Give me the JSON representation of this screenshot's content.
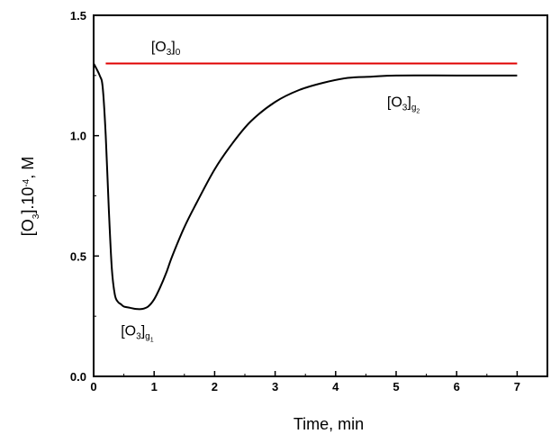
{
  "chart_data": {
    "type": "line",
    "title": "",
    "xlabel": "Time, min",
    "ylabel": {
      "pre": "[O",
      "sub": "3",
      "mid": "].10",
      "sup": "-4",
      "post": ", M"
    },
    "xlim": [
      0,
      7.5
    ],
    "ylim": [
      0,
      1.5
    ],
    "xticks": [
      "0",
      "1",
      "2",
      "3",
      "4",
      "5",
      "6",
      "7"
    ],
    "yticks": [
      "0.0",
      "0.5",
      "1.0",
      "1.5"
    ],
    "grid": false,
    "series": [
      {
        "color": "#e00000",
        "x": [
          0.2,
          7.0
        ],
        "y": [
          1.3,
          1.3
        ]
      },
      {
        "color": "#000000",
        "x": [
          0.0,
          0.1,
          0.15,
          0.2,
          0.25,
          0.3,
          0.35,
          0.4,
          0.45,
          0.5,
          0.6,
          0.7,
          0.8,
          0.9,
          1.0,
          1.1,
          1.2,
          1.3,
          1.5,
          1.7,
          2.0,
          2.3,
          2.6,
          3.0,
          3.4,
          3.8,
          4.2,
          4.6,
          5.0,
          6.0,
          7.0
        ],
        "y": [
          1.3,
          1.25,
          1.2,
          1.0,
          0.7,
          0.45,
          0.34,
          0.31,
          0.3,
          0.29,
          0.285,
          0.28,
          0.28,
          0.29,
          0.32,
          0.37,
          0.43,
          0.5,
          0.62,
          0.72,
          0.86,
          0.97,
          1.06,
          1.14,
          1.19,
          1.22,
          1.24,
          1.245,
          1.25,
          1.25,
          1.25
        ]
      }
    ],
    "annotations": [
      {
        "base": "[O",
        "sub1": "3",
        "close": "]",
        "sub2": "0",
        "sub3": "",
        "at_x": 0.95,
        "at_y": 1.35
      },
      {
        "base": "[O",
        "sub1": "3",
        "close": "]",
        "sub2": "g",
        "sub3": "1",
        "at_x": 0.45,
        "at_y": 0.17
      },
      {
        "base": "[O",
        "sub1": "3",
        "close": "]",
        "sub2": "g",
        "sub3": "2",
        "at_x": 4.85,
        "at_y": 1.12
      }
    ]
  }
}
